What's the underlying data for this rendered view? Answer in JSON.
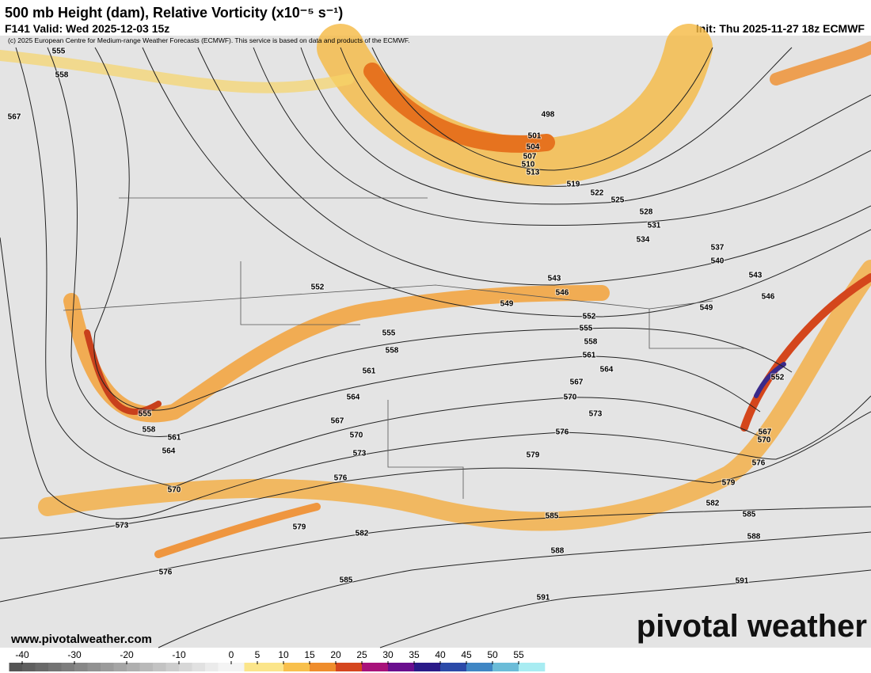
{
  "header": {
    "title": "500 mb Height (dam), Relative Vorticity (x10⁻⁵ s⁻¹)",
    "valid": "F141 Valid: Wed 2025-12-03 15z",
    "init": "Init: Thu 2025-11-27 18z ECMWF",
    "credit": "(c) 2025 European Centre for Medium-range Weather Forecasts (ECMWF). This service is based on data and products of the ECMWF."
  },
  "map": {
    "contour_labels": [
      555,
      558,
      567,
      498,
      501,
      504,
      507,
      510,
      513,
      519,
      522,
      525,
      528,
      531,
      534,
      537,
      540,
      543,
      543,
      546,
      546,
      549,
      549,
      552,
      552,
      555,
      555,
      558,
      558,
      561,
      561,
      564,
      564,
      567,
      567,
      570,
      570,
      573,
      573,
      576,
      576,
      579,
      579,
      582,
      585,
      585,
      588,
      588,
      591,
      591,
      555,
      558,
      561,
      564,
      570,
      573,
      576,
      579,
      582,
      585,
      576,
      552,
      567,
      570
    ],
    "website": "www.pivotalweather.com",
    "logo": "pivotal weather"
  },
  "colorbar": {
    "ticks": [
      -40,
      -30,
      -20,
      -10,
      0,
      5,
      10,
      15,
      20,
      25,
      30,
      35,
      40,
      45,
      50,
      55
    ]
  }
}
